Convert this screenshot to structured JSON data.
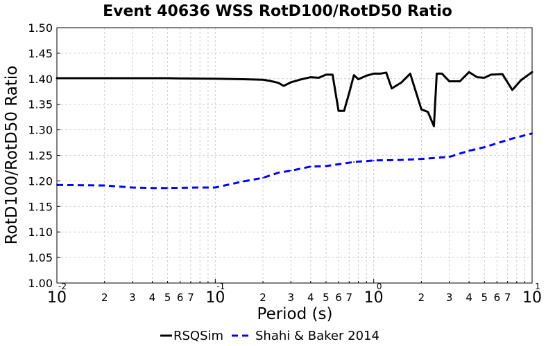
{
  "chart_data": {
    "type": "line",
    "title": "Event 40636 WSS RotD100/RotD50 Ratio",
    "xlabel": "Period (s)",
    "ylabel": "RotD100/RotD50 Ratio",
    "xscale": "log",
    "xlim": [
      0.01,
      10
    ],
    "ylim": [
      1.0,
      1.5
    ],
    "yticks": [
      "1.00",
      "1.05",
      "1.10",
      "1.15",
      "1.20",
      "1.25",
      "1.30",
      "1.35",
      "1.40",
      "1.45",
      "1.50"
    ],
    "x_major_ticks": [
      {
        "base": "10",
        "exp": "-2",
        "value": 0.01
      },
      {
        "base": "10",
        "exp": "-1",
        "value": 0.1
      },
      {
        "base": "10",
        "exp": "0",
        "value": 1
      },
      {
        "base": "10",
        "exp": "1",
        "value": 10
      }
    ],
    "x_minor_labels": [
      "2",
      "3",
      "4",
      "5",
      "6",
      "7"
    ],
    "grid": true,
    "legend_placement": "bottom",
    "series": [
      {
        "name": "RSQSim",
        "color": "#000000",
        "style": "solid",
        "x": [
          0.01,
          0.02,
          0.03,
          0.05,
          0.1,
          0.15,
          0.2,
          0.22,
          0.25,
          0.27,
          0.3,
          0.35,
          0.4,
          0.45,
          0.5,
          0.55,
          0.6,
          0.65,
          0.7,
          0.75,
          0.8,
          0.9,
          1.0,
          1.1,
          1.2,
          1.3,
          1.5,
          1.7,
          2.0,
          2.2,
          2.4,
          2.5,
          2.7,
          3.0,
          3.5,
          4.0,
          4.5,
          5.0,
          5.5,
          6.5,
          7.5,
          8.5,
          10.0
        ],
        "y": [
          1.401,
          1.401,
          1.401,
          1.401,
          1.4,
          1.399,
          1.398,
          1.396,
          1.392,
          1.386,
          1.393,
          1.399,
          1.403,
          1.402,
          1.408,
          1.408,
          1.337,
          1.337,
          1.372,
          1.407,
          1.399,
          1.406,
          1.41,
          1.41,
          1.412,
          1.381,
          1.393,
          1.41,
          1.34,
          1.335,
          1.307,
          1.41,
          1.41,
          1.395,
          1.395,
          1.413,
          1.403,
          1.402,
          1.408,
          1.409,
          1.378,
          1.397,
          1.413
        ]
      },
      {
        "name": "Shahi & Baker 2014",
        "color": "#0000ff",
        "style": "dashed",
        "x": [
          0.01,
          0.02,
          0.03,
          0.04,
          0.05,
          0.075,
          0.1,
          0.15,
          0.2,
          0.25,
          0.3,
          0.4,
          0.5,
          0.75,
          1.0,
          1.5,
          2.0,
          3.0,
          4.0,
          5.0,
          7.5,
          10.0
        ],
        "y": [
          1.192,
          1.191,
          1.187,
          1.186,
          1.186,
          1.187,
          1.187,
          1.199,
          1.206,
          1.216,
          1.22,
          1.228,
          1.229,
          1.237,
          1.24,
          1.241,
          1.243,
          1.247,
          1.259,
          1.266,
          1.283,
          1.293
        ]
      }
    ]
  }
}
